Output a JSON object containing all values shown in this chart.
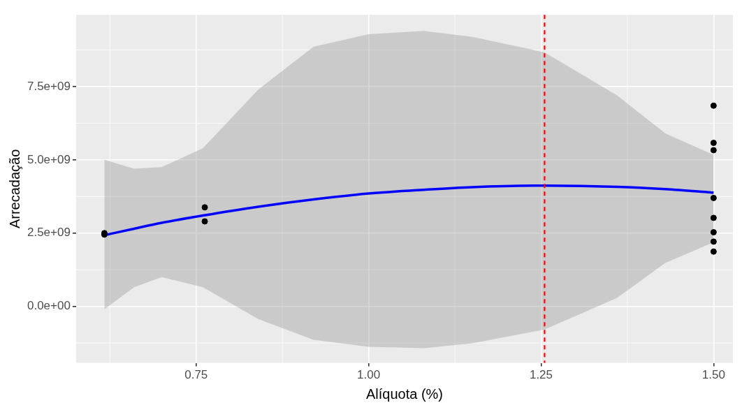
{
  "chart_data": {
    "type": "scatter",
    "xlabel": "Alíquota (%)",
    "ylabel": "Arrecadação",
    "series": [
      {
        "color": "#000000",
        "marker": "circle",
        "x": [
          0.617,
          0.617,
          0.7625,
          0.7625,
          1.5,
          1.5,
          1.5,
          1.5,
          1.5,
          1.5,
          1.5,
          1.5
        ],
        "values": [
          2450000000.0,
          2500000000.0,
          3380000000.0,
          2900000000.0,
          6850000000.0,
          5580000000.0,
          5330000000.0,
          3700000000.0,
          3020000000.0,
          2530000000.0,
          2210000000.0,
          1870000000.0
        ]
      },
      {
        "type": "line",
        "color": "#0000ff",
        "marker": "none",
        "x": [
          0.617,
          0.66,
          0.7,
          0.76,
          0.84,
          0.92,
          1.0,
          1.08,
          1.15,
          1.255,
          1.36,
          1.43,
          1.5
        ],
        "values": [
          2430000000.0,
          2650000000.0,
          2850000000.0,
          3100000000.0,
          3400000000.0,
          3650000000.0,
          3850000000.0,
          3980000000.0,
          4070000000.0,
          4120000000.0,
          4080000000.0,
          4000000000.0,
          3880000000.0
        ],
        "lower": [
          -100000000.0,
          650000000.0,
          1000000000.0,
          650000000.0,
          -430000000.0,
          -1140000000.0,
          -1380000000.0,
          -1430000000.0,
          -1260000000.0,
          -790000000.0,
          290000000.0,
          1480000000.0,
          2190000000.0
        ],
        "upper": [
          5000000000.0,
          4700000000.0,
          4750000000.0,
          5400000000.0,
          7400000000.0,
          8860000000.0,
          9290000000.0,
          9400000000.0,
          9200000000.0,
          8670000000.0,
          7200000000.0,
          5900000000.0,
          5170000000.0
        ]
      }
    ],
    "xlim": [
      0.576,
      1.528
    ],
    "ylim": [
      -1930000000.0,
      9950000000.0
    ],
    "xticks": [
      {
        "value": 0.75,
        "label": "0.75"
      },
      {
        "value": 1.0,
        "label": "1.00"
      },
      {
        "value": 1.25,
        "label": "1.25"
      },
      {
        "value": 1.5,
        "label": "1.50"
      }
    ],
    "yticks": [
      {
        "value": 0,
        "label": "0.0e+00"
      },
      {
        "value": 2500000000.0,
        "label": "2.5e+09"
      },
      {
        "value": 5000000000.0,
        "label": "5.0e+09"
      },
      {
        "value": 7500000000.0,
        "label": "7.5e+09"
      }
    ],
    "ref_lines": [
      {
        "axis": "x",
        "value": 1.255,
        "color": "#ff0000",
        "line_style": "dashed"
      }
    ],
    "grid": true
  }
}
